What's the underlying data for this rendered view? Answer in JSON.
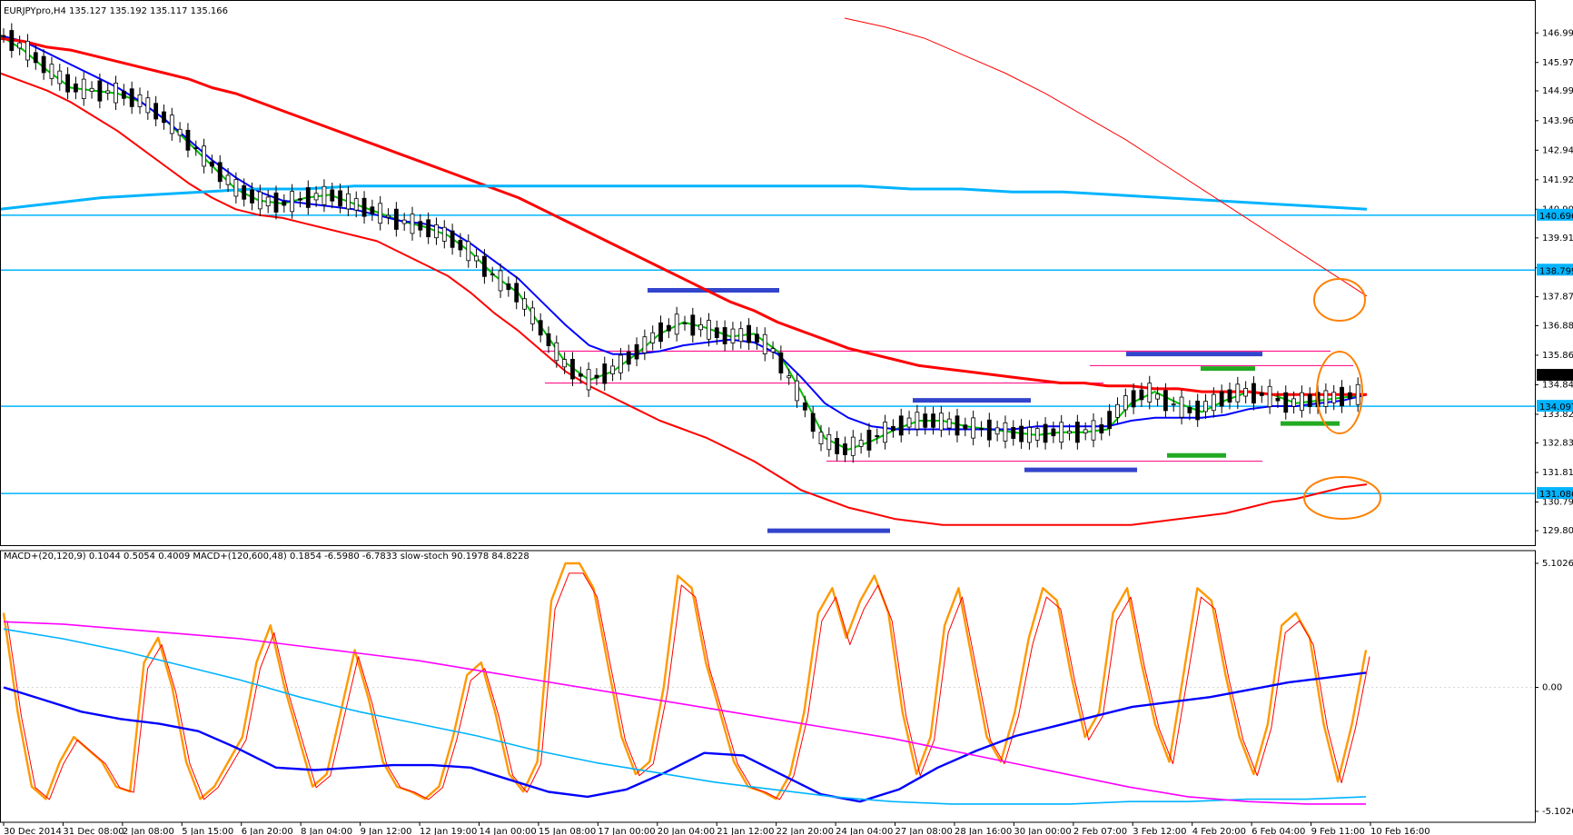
{
  "chart_data": [
    {
      "type": "candlestick",
      "title": "EURJPYpro,H4  135.127 135.192 135.117 135.166",
      "symbol": "EURJPYpro,H4",
      "ohlc": {
        "open": "135.127",
        "high": "135.192",
        "low": "135.117",
        "close": "135.166"
      },
      "ylim": [
        129.3,
        147.5
      ],
      "y_ticks": [
        "146.990",
        "145.970",
        "144.990",
        "143.960",
        "142.940",
        "141.920",
        "140.900",
        "139.910",
        "138.880",
        "137.879",
        "136.880",
        "135.860",
        "134.840",
        "133.820",
        "132.830",
        "131.810",
        "130.790",
        "129.800"
      ],
      "price_labels": [
        {
          "text": "140.696",
          "value": 140.696,
          "bg": "#00b4ff"
        },
        {
          "text": "138.799",
          "value": 138.799,
          "bg": "#00b4ff"
        },
        {
          "text": "135.166",
          "value": 135.166,
          "bg": "#000000"
        },
        {
          "text": "134.097",
          "value": 134.097,
          "bg": "#00b4ff"
        },
        {
          "text": "131.086",
          "value": 131.086,
          "bg": "#00b4ff"
        }
      ],
      "x_labels": [
        "30 Dec 2014",
        "31 Dec 08:00",
        "2 Jan 08:00",
        "5 Jan 15:00",
        "6 Jan 20:00",
        "8 Jan 04:00",
        "9 Jan 12:00",
        "12 Jan 19:00",
        "14 Jan 00:00",
        "15 Jan 08:00",
        "17 Jan 00:00",
        "20 Jan 04:00",
        "21 Jan 12:00",
        "22 Jan 20:00",
        "24 Jan 04:00",
        "27 Jan 08:00",
        "28 Jan 16:00",
        "30 Jan 00:00",
        "2 Feb 07:00",
        "3 Feb 12:00",
        "4 Feb 20:00",
        "6 Feb 04:00",
        "9 Feb 11:00",
        "10 Feb 16:00"
      ],
      "horizontal_levels": [
        {
          "value": 140.696,
          "color": "#00b4ff"
        },
        {
          "value": 138.799,
          "color": "#00b4ff"
        },
        {
          "value": 134.097,
          "color": "#00b4ff"
        },
        {
          "value": 131.086,
          "color": "#00b4ff"
        }
      ],
      "series": [
        {
          "color": "#00c000",
          "values": [
            146.9,
            146.4,
            145.7,
            145.1,
            145.0,
            144.9,
            144.6,
            144.0,
            143.2,
            142.4,
            141.6,
            141.2,
            141.1,
            141.3,
            141.4,
            141.1,
            140.8,
            140.5,
            140.3,
            140.0,
            139.4,
            138.6,
            138.0,
            136.8,
            135.6,
            135.0,
            135.3,
            135.9,
            136.6,
            137.0,
            136.8,
            136.5,
            136.6,
            136.0,
            134.6,
            133.0,
            132.6,
            132.9,
            133.3,
            133.6,
            133.6,
            133.4,
            133.3,
            133.2,
            133.1,
            133.2,
            133.2,
            133.3,
            134.2,
            134.6,
            134.2,
            133.9,
            134.3,
            134.6,
            134.5,
            134.2,
            134.3,
            134.4,
            134.5
          ]
        },
        {
          "color": "#0000ff",
          "values": [
            146.9,
            146.7,
            146.3,
            145.9,
            145.5,
            145.1,
            144.6,
            144.0,
            143.3,
            142.6,
            142.0,
            141.5,
            141.2,
            141.1,
            141.0,
            140.9,
            140.7,
            140.5,
            140.4,
            140.2,
            139.7,
            139.1,
            138.5,
            137.7,
            136.9,
            136.2,
            135.9,
            135.9,
            136.0,
            136.2,
            136.3,
            136.4,
            136.3,
            135.9,
            135.1,
            134.2,
            133.7,
            133.4,
            133.3,
            133.3,
            133.3,
            133.3,
            133.3,
            133.3,
            133.4,
            133.4,
            133.4,
            133.4,
            133.6,
            133.7,
            133.7,
            133.7,
            133.8,
            134.0,
            134.1,
            134.1,
            134.2,
            134.3,
            134.5
          ]
        },
        {
          "color": "#ff0000",
          "values": [
            145.6,
            145.3,
            145.0,
            144.6,
            144.1,
            143.6,
            143.0,
            142.4,
            141.8,
            141.3,
            140.9,
            140.7,
            140.6,
            140.4,
            140.2,
            140.0,
            139.8,
            139.4,
            139.0,
            138.6,
            138.0,
            137.3,
            136.7,
            136.0,
            135.3,
            134.8,
            134.4,
            134.0,
            133.6,
            133.3,
            133.0,
            132.6,
            132.2,
            131.7,
            131.2,
            130.9,
            130.6,
            130.4,
            130.2,
            130.1,
            130.0,
            130.0,
            130.0,
            130.0,
            130.0,
            130.0,
            130.0,
            130.0,
            130.0,
            130.1,
            130.2,
            130.3,
            130.4,
            130.6,
            130.8,
            130.9,
            131.1,
            131.3,
            131.4
          ]
        },
        {
          "color": "#ff0000",
          "values": [
            146.8,
            146.7,
            146.5,
            146.4,
            146.2,
            146.0,
            145.8,
            145.6,
            145.4,
            145.1,
            144.9,
            144.6,
            144.3,
            144.0,
            143.7,
            143.4,
            143.1,
            142.8,
            142.5,
            142.2,
            141.9,
            141.6,
            141.3,
            140.9,
            140.5,
            140.1,
            139.7,
            139.3,
            138.9,
            138.5,
            138.1,
            137.7,
            137.4,
            137.0,
            136.7,
            136.4,
            136.1,
            135.9,
            135.7,
            135.5,
            135.4,
            135.3,
            135.2,
            135.1,
            135.0,
            134.9,
            134.9,
            134.8,
            134.8,
            134.7,
            134.7,
            134.6,
            134.6,
            134.6,
            134.5,
            134.5,
            134.5,
            134.5,
            134.5
          ]
        },
        {
          "color": "#00b4ff",
          "values": [
            140.9,
            141.1,
            141.3,
            141.4,
            141.5,
            141.6,
            141.6,
            141.7,
            141.7,
            141.7,
            141.7,
            141.7,
            141.7,
            141.7,
            141.7,
            141.7,
            141.7,
            141.7,
            141.6,
            141.6,
            141.5,
            141.5,
            141.4,
            141.3,
            141.2,
            141.1,
            141.0,
            140.9
          ]
        },
        {
          "color": "#ff0000",
          "values": [
            147.5,
            147.2,
            146.8,
            146.2,
            145.6,
            144.9,
            144.1,
            143.3,
            142.4,
            141.5,
            140.6,
            139.7,
            138.8,
            137.9
          ]
        }
      ]
    },
    {
      "type": "line",
      "title": "MACD+(20,120,9) 0.1044 0.5054 0.4009  MACD+(120,600,48) 0.1854 -6.5980 -6.7833  slow-stoch 90.1978 84.8228",
      "ylim": [
        -5.1026,
        5.1026
      ],
      "y_ticks": [
        "5.1026",
        "0.00",
        "-5.1026"
      ],
      "series": [
        {
          "name": "slow-stoch",
          "color": "#ff9900",
          "values": [
            80,
            40,
            10,
            5,
            20,
            30,
            25,
            20,
            10,
            8,
            60,
            70,
            50,
            20,
            5,
            10,
            20,
            30,
            60,
            75,
            50,
            30,
            10,
            15,
            40,
            65,
            45,
            20,
            10,
            8,
            5,
            10,
            30,
            55,
            60,
            40,
            15,
            8,
            20,
            85,
            100,
            100,
            90,
            60,
            30,
            15,
            20,
            50,
            95,
            90,
            60,
            40,
            20,
            10,
            8,
            5,
            15,
            40,
            80,
            90,
            70,
            85,
            95,
            80,
            40,
            15,
            30,
            75,
            90,
            60,
            30,
            20,
            40,
            70,
            90,
            85,
            55,
            30,
            40,
            80,
            90,
            60,
            35,
            20,
            55,
            90,
            85,
            55,
            30,
            15,
            35,
            75,
            80,
            70,
            35,
            12,
            35,
            65
          ]
        },
        {
          "name": "MACD+(20,120,9)",
          "color": "#0000ff",
          "values": [
            0.0,
            -0.5,
            -1.0,
            -1.3,
            -1.5,
            -1.8,
            -2.5,
            -3.3,
            -3.4,
            -3.3,
            -3.2,
            -3.2,
            -3.3,
            -3.8,
            -4.3,
            -4.5,
            -4.2,
            -3.5,
            -2.7,
            -2.8,
            -3.6,
            -4.4,
            -4.7,
            -4.2,
            -3.3,
            -2.6,
            -2.0,
            -1.6,
            -1.2,
            -0.8,
            -0.6,
            -0.4,
            -0.1,
            0.2,
            0.4,
            0.6
          ]
        },
        {
          "name": "MACD+(120,600,48)",
          "color": "#00b4ff",
          "values": [
            2.4,
            2.0,
            1.5,
            0.9,
            0.3,
            -0.4,
            -1.0,
            -1.5,
            -2.0,
            -2.6,
            -3.1,
            -3.5,
            -3.9,
            -4.2,
            -4.5,
            -4.7,
            -4.8,
            -4.8,
            -4.8,
            -4.7,
            -4.7,
            -4.6,
            -4.6,
            -4.5
          ]
        },
        {
          "name": "signal",
          "color": "#ff00ff",
          "values": [
            2.7,
            2.6,
            2.4,
            2.2,
            2.0,
            1.7,
            1.4,
            1.1,
            0.7,
            0.3,
            -0.1,
            -0.5,
            -0.9,
            -1.3,
            -1.7,
            -2.1,
            -2.6,
            -3.1,
            -3.6,
            -4.1,
            -4.5,
            -4.7,
            -4.8,
            -4.8
          ]
        }
      ]
    }
  ]
}
